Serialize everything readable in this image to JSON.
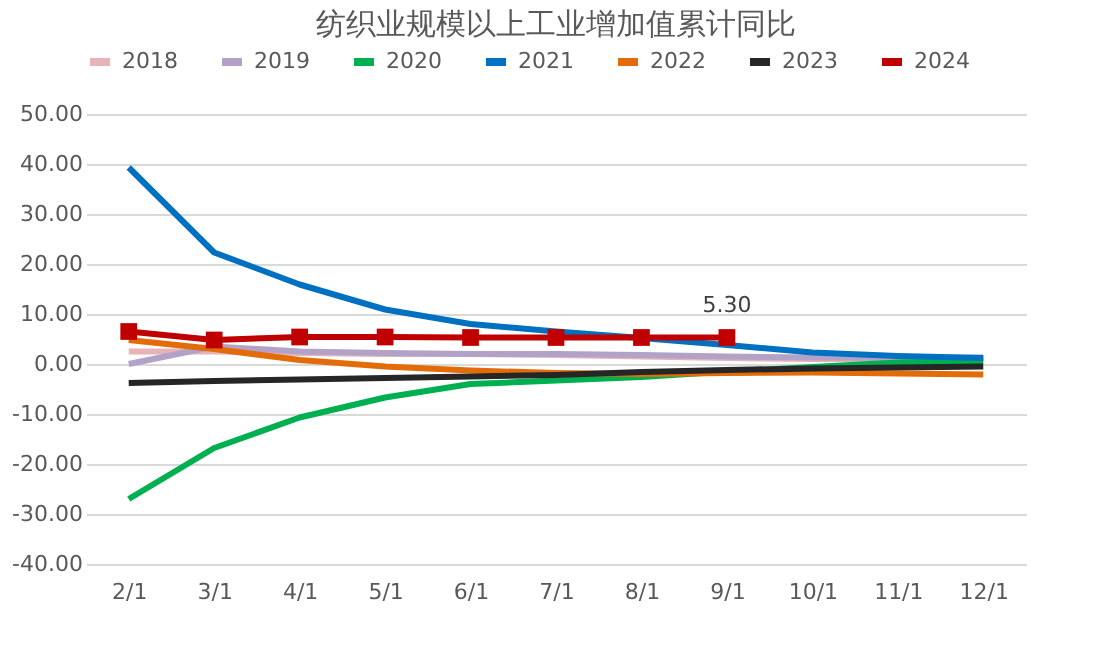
{
  "chart_data": {
    "type": "line",
    "title": "纺织业规模以上工业增加值累计同比",
    "categories": [
      "2/1",
      "3/1",
      "4/1",
      "5/1",
      "6/1",
      "7/1",
      "8/1",
      "9/1",
      "10/1",
      "11/1",
      "12/1"
    ],
    "series": [
      {
        "name": "2018",
        "color": "#e6b4b8",
        "values": [
          2.5,
          2.5,
          2.2,
          2.0,
          2.0,
          1.8,
          1.5,
          1.2,
          1.0,
          1.0,
          1.0
        ]
      },
      {
        "name": "2019",
        "color": "#b3a2c7",
        "values": [
          0.0,
          3.5,
          2.5,
          2.2,
          2.0,
          2.0,
          1.8,
          1.5,
          1.3,
          1.2,
          1.3
        ]
      },
      {
        "name": "2020",
        "color": "#00b050",
        "values": [
          -27.0,
          -16.8,
          -10.7,
          -6.7,
          -4.0,
          -3.3,
          -2.6,
          -1.5,
          -0.6,
          0.3,
          0.6
        ]
      },
      {
        "name": "2021",
        "color": "#0070c0",
        "values": [
          39.3,
          22.3,
          15.9,
          10.9,
          8.0,
          6.5,
          5.2,
          3.8,
          2.3,
          1.6,
          1.2
        ]
      },
      {
        "name": "2022",
        "color": "#e36c09",
        "values": [
          4.8,
          3.0,
          0.8,
          -0.5,
          -1.3,
          -1.8,
          -2.0,
          -1.8,
          -1.7,
          -1.9,
          -2.1
        ]
      },
      {
        "name": "2023",
        "color": "#262626",
        "values": [
          -3.8,
          -3.4,
          -3.1,
          -2.8,
          -2.5,
          -2.2,
          -1.6,
          -1.2,
          -0.9,
          -0.7,
          -0.5
        ]
      },
      {
        "name": "2024",
        "color": "#c00000",
        "marker": "square",
        "values": [
          6.5,
          4.8,
          5.4,
          5.4,
          5.3,
          5.3,
          5.3,
          5.3,
          null,
          null,
          null
        ],
        "value_labels": [
          null,
          null,
          null,
          null,
          null,
          null,
          null,
          "5.30",
          null,
          null,
          null
        ]
      }
    ],
    "ylim": [
      -40,
      50
    ],
    "yticks": [
      {
        "value": -40,
        "label": "-40.00"
      },
      {
        "value": -30,
        "label": "-30.00"
      },
      {
        "value": -20,
        "label": "-20.00"
      },
      {
        "value": -10,
        "label": "-10.00"
      },
      {
        "value": 0,
        "label": "0.00"
      },
      {
        "value": 10,
        "label": "10.00"
      },
      {
        "value": 20,
        "label": "20.00"
      },
      {
        "value": 30,
        "label": "30.00"
      },
      {
        "value": 40,
        "label": "40.00"
      },
      {
        "value": 50,
        "label": "50.00"
      }
    ],
    "grid": "y",
    "legend": "top",
    "line_style": "solid"
  }
}
